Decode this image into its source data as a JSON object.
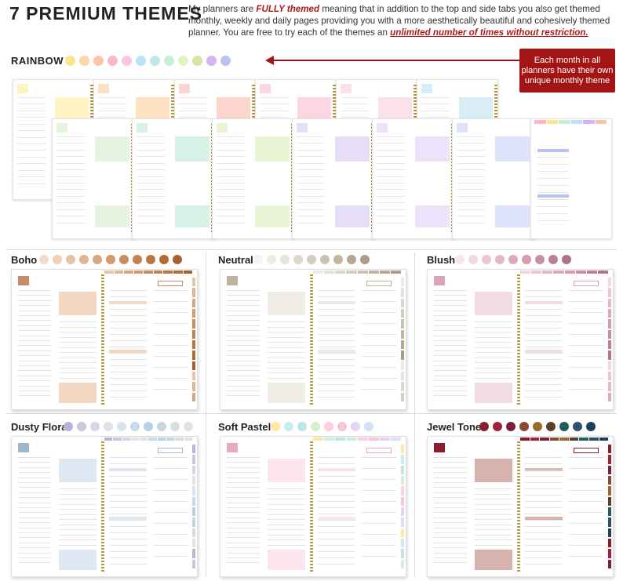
{
  "header": {
    "title": "7 PREMIUM THEMES",
    "intro_1": "My planners are ",
    "intro_em": "FULLY themed",
    "intro_2": " meaning that in addition to the top and side tabs you also get themed monthly, weekly and daily pages providing you with a more aesthetically beautiful and cohesively themed planner. You are free to try each of the themes an ",
    "intro_emu": "unlimited number of times without restriction.",
    "intro_3": ""
  },
  "callout": {
    "text": "Each month in all planners have their own unique monthly theme"
  },
  "themes": [
    {
      "key": "rainbow",
      "label": "RAINBOW",
      "swatches": [
        "#fde68a",
        "#fdd7a5",
        "#fbc4a8",
        "#f9b8c4",
        "#f9c6dc",
        "#b9e3f7",
        "#bfe8ea",
        "#c5f0d6",
        "#e3f3c0",
        "#d6e4a6",
        "#d3b5f5",
        "#b9c1f3"
      ]
    },
    {
      "key": "boho",
      "label": "Boho",
      "swatches": [
        "#f0dcc8",
        "#ecd1b8",
        "#e6c4a6",
        "#e0b692",
        "#d9a77f",
        "#d29a6d",
        "#cb8d5d",
        "#c4824e",
        "#bb7640",
        "#b36b34",
        "#a86030"
      ]
    },
    {
      "key": "neutral",
      "label": "Neutral",
      "swatches": [
        "#f5f3ef",
        "#eeebe5",
        "#e7e2d9",
        "#ded8cc",
        "#d5cdbf",
        "#cbc1b1",
        "#c0b4a2",
        "#b5a893",
        "#aa9c85"
      ]
    },
    {
      "key": "blush",
      "label": "Blush",
      "swatches": [
        "#f7e6ea",
        "#f1d7de",
        "#ebc8d1",
        "#e4b8c4",
        "#ddaab8",
        "#d49cac",
        "#c98ea0",
        "#bd8194",
        "#b07488"
      ]
    },
    {
      "key": "dusty_floral",
      "label": "Dusty Floral",
      "swatches": [
        "#b7b5d6",
        "#c9c6e0",
        "#d8d4e6",
        "#e4dfe8",
        "#d9e4ee",
        "#c6dbe9",
        "#b7d1e4",
        "#c7d6dd",
        "#d6dfe0",
        "#dfe3e2"
      ]
    },
    {
      "key": "soft_pastel",
      "label": "Soft Pastel",
      "swatches": [
        "#fde8a5",
        "#c8ecf3",
        "#bfe6df",
        "#d4f0d0",
        "#f9d1e2",
        "#f7c5d6",
        "#e3d4f5",
        "#d4e1f8"
      ]
    },
    {
      "key": "jewel_tone",
      "label": "Jewel Tone",
      "swatches": [
        "#8b1e2d",
        "#a3203a",
        "#7a1f3d",
        "#8c4a2f",
        "#9c6a2c",
        "#5a3f2a",
        "#1f5f5a",
        "#2f4f6a",
        "#1f3f5a"
      ]
    }
  ],
  "rainbow_pages_top": [
    {
      "color": "#fff3c4"
    },
    {
      "color": "#fde2c2"
    },
    {
      "color": "#fcd5cc"
    },
    {
      "color": "#fcd6e0"
    },
    {
      "color": "#fbe1ea"
    },
    {
      "color": "#d9edf8"
    }
  ],
  "rainbow_pages_bottom": [
    {
      "color": "#e5f4e0"
    },
    {
      "color": "#d7f1e6"
    },
    {
      "color": "#e9f4d4"
    },
    {
      "color": "#e6ddf7"
    },
    {
      "color": "#ece3fa"
    },
    {
      "color": "#dde3f8"
    }
  ],
  "planner_accents": {
    "boho": {
      "box": "#f2d7c3",
      "tab": "#c78b6a",
      "hdr": "#c78b6a"
    },
    "neutral": {
      "box": "#efece5",
      "tab": "#cfc6b6",
      "hdr": "#bdb29e"
    },
    "blush": {
      "box": "#f2dde3",
      "tab": "#d49cac",
      "hdr": "#d9a6b5"
    },
    "dusty_floral": {
      "box": "#dde8f3",
      "tab": "#b7b5d6",
      "hdr": "#9fb6cf"
    },
    "soft_pastel": {
      "box": "#fbe4ec",
      "tab": "#f7c5d6",
      "hdr": "#e7a9bd"
    },
    "jewel_tone": {
      "box": "#d8b3ae",
      "tab": "#8b1e2d",
      "hdr": "#8b1e2d"
    }
  }
}
